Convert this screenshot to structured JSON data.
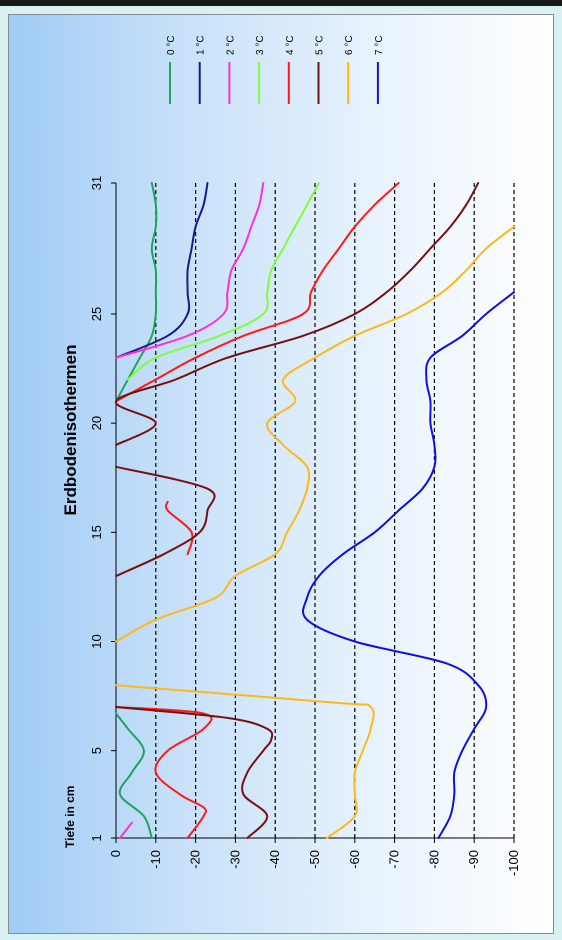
{
  "chart_data": {
    "type": "line",
    "title": "Erdbodenisothermen",
    "ylabel": "Tiefe in cm",
    "xlim": [
      1,
      31
    ],
    "ylim": [
      0,
      -100
    ],
    "x_ticks": [
      1,
      5,
      10,
      15,
      20,
      25,
      31
    ],
    "y_ticks": [
      0,
      -10,
      -20,
      -30,
      -40,
      -50,
      -60,
      -70,
      -80,
      -90,
      -100
    ],
    "grid": "dashed horizontal lines at every 10 cm",
    "legend_position": "top",
    "series": [
      {
        "name": "0 °C",
        "color": "#1fa35c",
        "points": [
          [
            1,
            -9
          ],
          [
            2,
            -7
          ],
          [
            3,
            -1
          ],
          [
            4,
            -4
          ],
          [
            5,
            -7
          ],
          [
            6,
            -3
          ],
          [
            6.7,
            0
          ]
        ]
      },
      {
        "name": "0 °C",
        "color": "#1fa35c",
        "points": [
          [
            21,
            0
          ],
          [
            22,
            -3
          ],
          [
            23,
            -6
          ],
          [
            24,
            -9
          ],
          [
            25,
            -10
          ],
          [
            26,
            -10
          ],
          [
            27,
            -10
          ],
          [
            28,
            -9
          ],
          [
            29,
            -10
          ],
          [
            30,
            -10
          ],
          [
            31,
            -9
          ]
        ]
      },
      {
        "name": "1 °C",
        "color": "#1a1a8c",
        "points": [
          [
            23,
            0
          ],
          [
            24,
            -13
          ],
          [
            25,
            -18
          ],
          [
            26,
            -18
          ],
          [
            27,
            -18
          ],
          [
            28,
            -19
          ],
          [
            29,
            -20
          ],
          [
            30,
            -22
          ],
          [
            31,
            -23
          ]
        ]
      },
      {
        "name": "2 °C",
        "color": "#ff2fd4",
        "points": [
          [
            1,
            -1
          ],
          [
            1.7,
            -4
          ]
        ]
      },
      {
        "name": "2 °C",
        "color": "#ff2fd4",
        "points": [
          [
            23,
            0
          ],
          [
            24,
            -18
          ],
          [
            25,
            -27
          ],
          [
            26,
            -28
          ],
          [
            27,
            -29
          ],
          [
            28,
            -32
          ],
          [
            29,
            -34
          ],
          [
            30,
            -36
          ],
          [
            31,
            -37
          ]
        ]
      },
      {
        "name": "3 °C",
        "color": "#7dff3a",
        "points": [
          [
            22,
            -3
          ],
          [
            23,
            -10
          ],
          [
            24,
            -26
          ],
          [
            25,
            -37
          ],
          [
            26,
            -38
          ],
          [
            27,
            -39
          ],
          [
            28,
            -42
          ],
          [
            29,
            -45
          ],
          [
            30,
            -48
          ],
          [
            31,
            -51
          ]
        ]
      },
      {
        "name": "4 °C",
        "color": "#ff1a1a",
        "points": [
          [
            1,
            -18
          ],
          [
            2,
            -22
          ],
          [
            2.4,
            -22
          ],
          [
            3,
            -16
          ],
          [
            4,
            -10
          ],
          [
            5,
            -13
          ],
          [
            6,
            -22
          ],
          [
            6.7,
            -22
          ],
          [
            7,
            0
          ]
        ]
      },
      {
        "name": "4 °C",
        "color": "#ff1a1a",
        "points": [
          [
            14,
            -18
          ],
          [
            15,
            -19
          ],
          [
            16,
            -13
          ],
          [
            16.4,
            -13
          ]
        ]
      },
      {
        "name": "4 °C",
        "color": "#ff1a1a",
        "points": [
          [
            21,
            0
          ],
          [
            22,
            -10
          ],
          [
            23,
            -20
          ],
          [
            24,
            -32
          ],
          [
            25,
            -47
          ],
          [
            26,
            -49
          ],
          [
            27,
            -52
          ],
          [
            28,
            -56
          ],
          [
            29,
            -60
          ],
          [
            30,
            -65
          ],
          [
            31,
            -71
          ]
        ]
      },
      {
        "name": "5 °C",
        "color": "#7a0f0f",
        "points": [
          [
            1,
            -33
          ],
          [
            2,
            -38
          ],
          [
            3,
            -32
          ],
          [
            4,
            -33
          ],
          [
            5,
            -37
          ],
          [
            5.5,
            -39
          ],
          [
            6,
            -38
          ],
          [
            6.5,
            -28
          ],
          [
            7,
            0
          ]
        ]
      },
      {
        "name": "5 °C",
        "color": "#7a0f0f",
        "points": [
          [
            13,
            0
          ],
          [
            14,
            -12
          ],
          [
            15,
            -21
          ],
          [
            16,
            -23
          ],
          [
            17,
            -23
          ],
          [
            18,
            0
          ]
        ]
      },
      {
        "name": "5 °C",
        "color": "#7a0f0f",
        "points": [
          [
            19,
            0
          ],
          [
            20,
            -10
          ],
          [
            21,
            0
          ],
          [
            22,
            -15
          ],
          [
            23,
            -28
          ],
          [
            24,
            -47
          ],
          [
            25,
            -60
          ],
          [
            26,
            -68
          ],
          [
            27,
            -74
          ],
          [
            28,
            -79
          ],
          [
            29,
            -84
          ],
          [
            30,
            -88
          ],
          [
            31,
            -91
          ]
        ]
      },
      {
        "name": "6 °C",
        "color": "#ffb81a",
        "points": [
          [
            1,
            -53
          ],
          [
            2,
            -60
          ],
          [
            3,
            -60
          ],
          [
            4,
            -60
          ],
          [
            5,
            -62
          ],
          [
            6,
            -64
          ],
          [
            7,
            -64
          ],
          [
            7.2,
            -55
          ],
          [
            8,
            0
          ]
        ]
      },
      {
        "name": "6 °C",
        "color": "#ffb81a",
        "points": [
          [
            10,
            0
          ],
          [
            11,
            -10
          ],
          [
            12,
            -25
          ],
          [
            13,
            -30
          ],
          [
            14,
            -40
          ],
          [
            15,
            -43
          ],
          [
            16,
            -46
          ],
          [
            17,
            -48
          ],
          [
            18,
            -48
          ],
          [
            19,
            -42
          ],
          [
            20,
            -38
          ],
          [
            21,
            -45
          ],
          [
            22,
            -42
          ],
          [
            23,
            -50
          ],
          [
            24,
            -60
          ],
          [
            25,
            -73
          ],
          [
            26,
            -82
          ],
          [
            27,
            -88
          ],
          [
            28,
            -93
          ],
          [
            29,
            -100
          ]
        ]
      },
      {
        "name": "7 °C",
        "color": "#1010e0",
        "points": [
          [
            1,
            -81
          ],
          [
            2,
            -84
          ],
          [
            3,
            -85
          ],
          [
            4,
            -85
          ],
          [
            5,
            -87
          ],
          [
            6,
            -90
          ],
          [
            7,
            -93
          ],
          [
            8,
            -91
          ],
          [
            9,
            -83
          ],
          [
            10,
            -60
          ],
          [
            11,
            -48
          ],
          [
            12,
            -48
          ],
          [
            13,
            -51
          ],
          [
            14,
            -57
          ],
          [
            15,
            -65
          ],
          [
            16,
            -71
          ],
          [
            17,
            -77
          ],
          [
            18,
            -80
          ],
          [
            19,
            -80
          ],
          [
            20,
            -79
          ],
          [
            21,
            -79
          ],
          [
            22,
            -78
          ],
          [
            23,
            -79
          ],
          [
            24,
            -87
          ],
          [
            25,
            -93
          ],
          [
            26,
            -100
          ]
        ]
      }
    ],
    "legend": [
      {
        "label": "0 °C",
        "color": "#1fa35c"
      },
      {
        "label": "1 °C",
        "color": "#1a1a8c"
      },
      {
        "label": "2 °C",
        "color": "#ff2fd4"
      },
      {
        "label": "3 °C",
        "color": "#7dff3a"
      },
      {
        "label": "4 °C",
        "color": "#ff1a1a"
      },
      {
        "label": "5 °C",
        "color": "#7a0f0f"
      },
      {
        "label": "6 °C",
        "color": "#ffb81a"
      },
      {
        "label": "7 °C",
        "color": "#1010e0"
      }
    ]
  }
}
